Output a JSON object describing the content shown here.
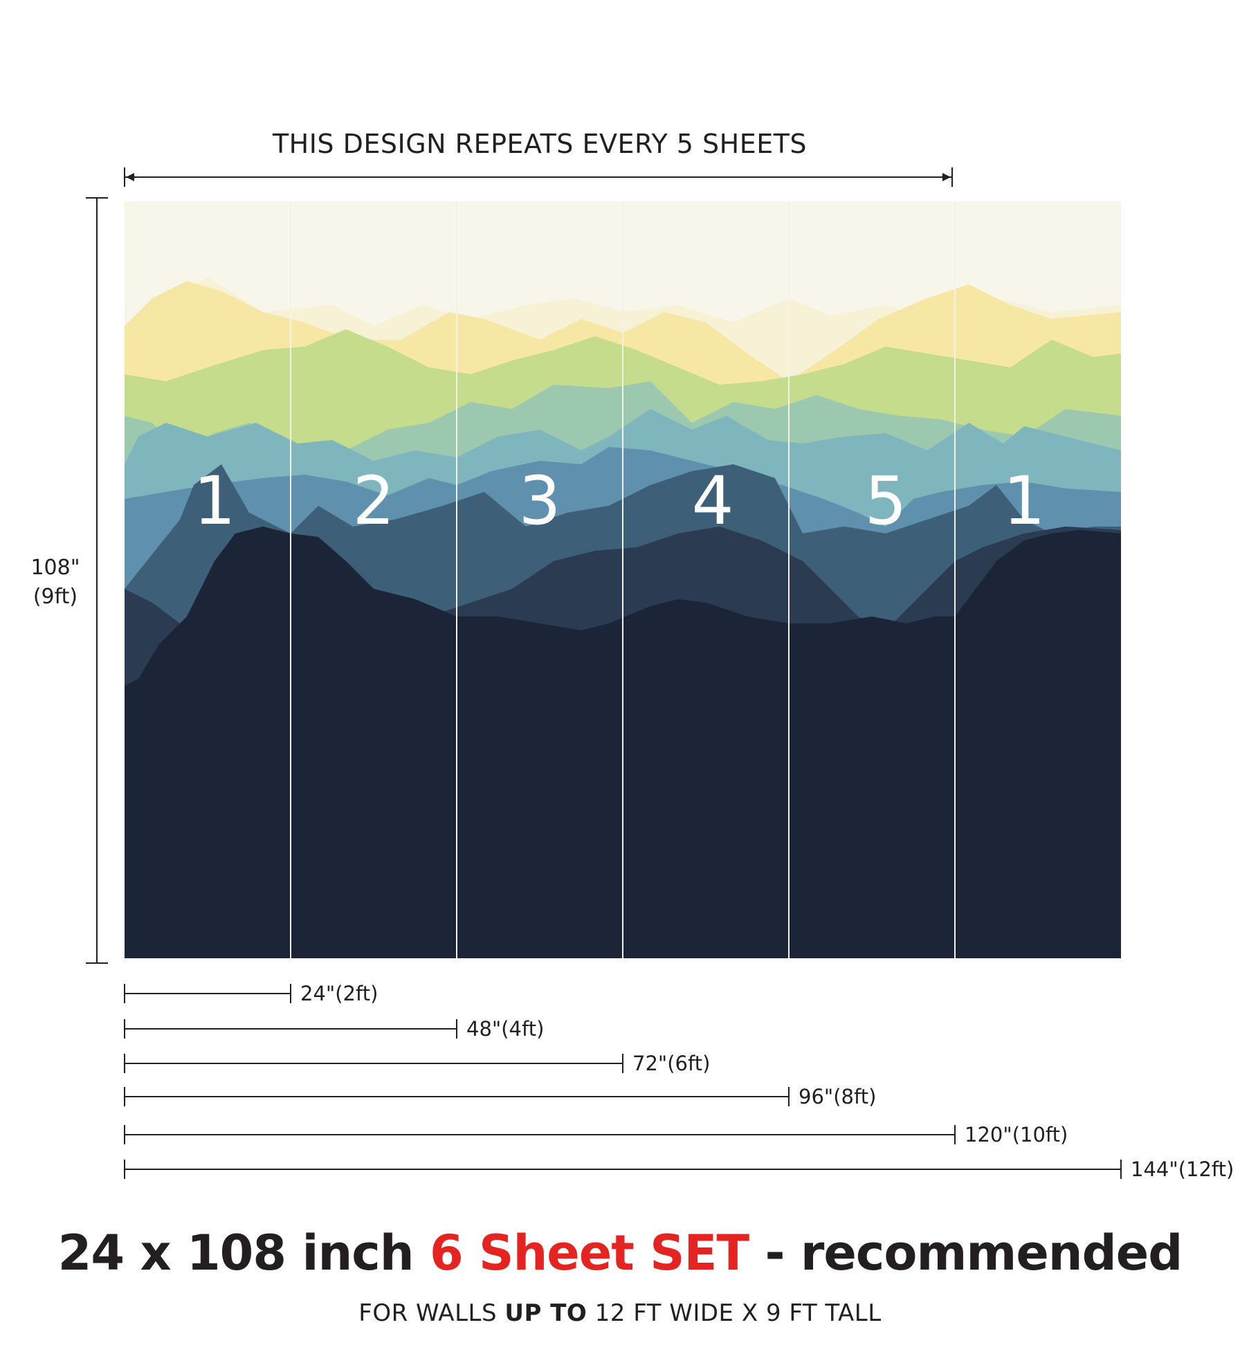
{
  "repeat_note": "THIS DESIGN REPEATS EVERY 5 SHEETS",
  "height": {
    "inches": "108\"",
    "feet": "(9ft)"
  },
  "sheets": [
    "1",
    "2",
    "3",
    "4",
    "5",
    "1"
  ],
  "widths": [
    {
      "inches": "24\"",
      "feet": "(2ft)"
    },
    {
      "inches": "48\"",
      "feet": "(4ft)"
    },
    {
      "inches": "72\"",
      "feet": "(6ft)"
    },
    {
      "inches": "96\"",
      "feet": "(8ft)"
    },
    {
      "inches": "120\"",
      "feet": "(10ft)"
    },
    {
      "inches": "144\"",
      "feet": "(12ft)"
    }
  ],
  "headline": {
    "pre": "24 x 108 inch ",
    "accent": "6 Sheet SET",
    "post": " - recommended"
  },
  "subline": {
    "pre": "FOR WALLS ",
    "bold": "UP TO",
    "post": " 12 FT WIDE X 9 FT TALL"
  },
  "colors": {
    "sky": "#f8f5ea",
    "layers": [
      "#f7f1d6",
      "#f6e7a4",
      "#c5dc8c",
      "#9cc8b0",
      "#7fb6bd",
      "#5f90ad",
      "#3e5f78",
      "#2b3c52",
      "#1c2437"
    ],
    "accent": "#e52421",
    "text": "#231f20"
  }
}
